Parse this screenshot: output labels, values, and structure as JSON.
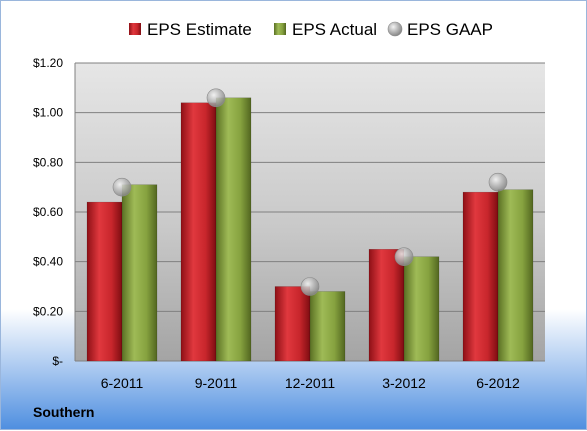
{
  "company": "Southern",
  "chart_data": {
    "type": "bar",
    "categories": [
      "6-2011",
      "9-2011",
      "12-2011",
      "3-2012",
      "6-2012"
    ],
    "series": [
      {
        "name": "EPS Estimate",
        "type": "bar",
        "color": "#c0232a",
        "values": [
          0.64,
          1.04,
          0.3,
          0.45,
          0.68
        ]
      },
      {
        "name": "EPS Actual",
        "type": "bar",
        "color": "#7f9a3b",
        "values": [
          0.71,
          1.06,
          0.28,
          0.42,
          0.69
        ]
      },
      {
        "name": "EPS GAAP",
        "type": "marker",
        "color": "#9a9a9a",
        "values": [
          0.7,
          1.06,
          0.3,
          0.42,
          0.72
        ]
      }
    ],
    "y_ticks": [
      {
        "value": 0,
        "label": "$-"
      },
      {
        "value": 0.2,
        "label": "$0.20"
      },
      {
        "value": 0.4,
        "label": "$0.40"
      },
      {
        "value": 0.6,
        "label": "$0.60"
      },
      {
        "value": 0.8,
        "label": "$0.80"
      },
      {
        "value": 1.0,
        "label": "$1.00"
      },
      {
        "value": 1.2,
        "label": "$1.20"
      }
    ],
    "ylim": [
      0,
      1.2
    ],
    "grid": true,
    "legend_position": "top"
  }
}
